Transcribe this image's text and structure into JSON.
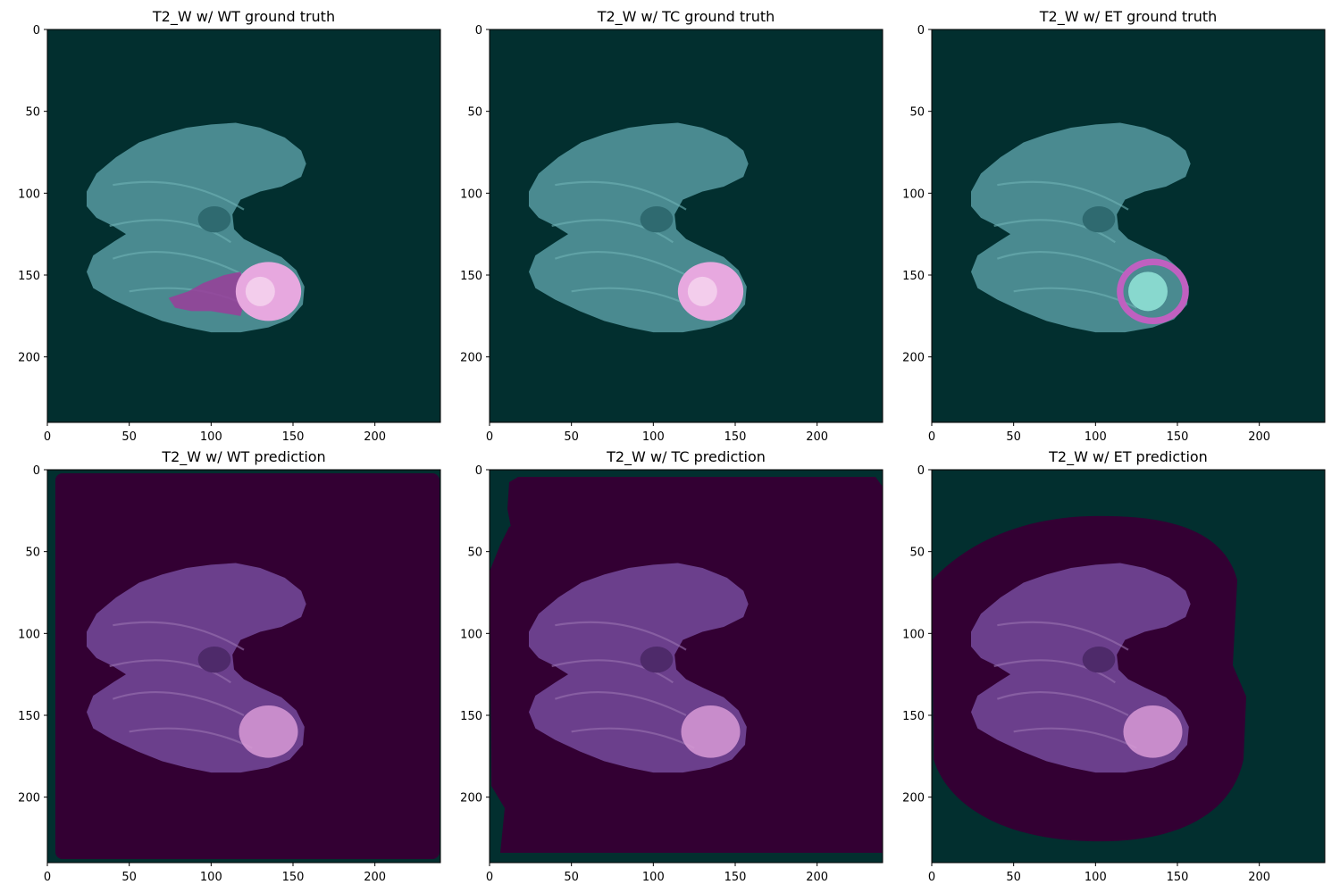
{
  "figure": {
    "panels": [
      {
        "title": "T2_W w/ WT ground truth",
        "kind": "gt",
        "mask": "wt",
        "background": "#022f2f"
      },
      {
        "title": "T2_W w/ TC ground truth",
        "kind": "gt",
        "mask": "tc",
        "background": "#022f2f"
      },
      {
        "title": "T2_W w/ ET ground truth",
        "kind": "gt",
        "mask": "et",
        "background": "#022f2f"
      },
      {
        "title": "T2_W w/ WT prediction",
        "kind": "pred",
        "mask": "wt",
        "background": "#022f2f"
      },
      {
        "title": "T2_W w/ TC prediction",
        "kind": "pred",
        "mask": "tc",
        "background": "#022f2f"
      },
      {
        "title": "T2_W w/ ET prediction",
        "kind": "pred",
        "mask": "et",
        "background": "#022f2f"
      }
    ],
    "x_ticks": [
      "0",
      "50",
      "100",
      "150",
      "200"
    ],
    "y_ticks": [
      "0",
      "50",
      "100",
      "150",
      "200"
    ],
    "colors": {
      "background": "#022f2f",
      "brain_gt": "#4a8a90",
      "brain_pred": "#6b3f8c",
      "tumor": "#e7a8df",
      "mask_overlay": "#330033"
    }
  }
}
